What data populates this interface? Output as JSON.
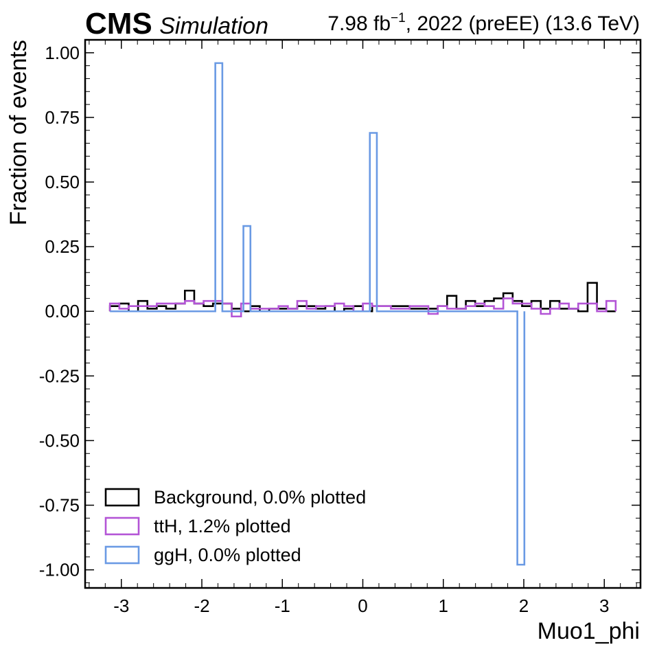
{
  "header": {
    "experiment": "CMS",
    "tag": "Simulation",
    "lumi_prefix": "7.98 fb",
    "lumi_exp": "−1",
    "lumi_suffix": ", 2022 (preEE) (13.6 TeV)"
  },
  "chart_data": {
    "type": "step-histogram",
    "xlabel": "Muo1_phi",
    "ylabel": "Fraction of events",
    "xlim": [
      -3.45,
      3.45
    ],
    "ylim": [
      -1.07,
      1.05
    ],
    "x_ticks": [
      -3,
      -2,
      -1,
      0,
      1,
      2,
      3
    ],
    "x_tick_labels": [
      "-3",
      "-2",
      "-1",
      "0",
      "1",
      "2",
      "3"
    ],
    "y_ticks": [
      -1.0,
      -0.75,
      -0.5,
      -0.25,
      0.0,
      0.25,
      0.5,
      0.75,
      1.0
    ],
    "y_tick_labels": [
      "-1.00",
      "-0.75",
      "-0.50",
      "-0.25",
      "0.00",
      "0.25",
      "0.50",
      "0.75",
      "1.00"
    ],
    "grid": false,
    "legend_position": "bottom-left",
    "bin_range": [
      -3.14159,
      3.14159
    ],
    "n_bins": 54,
    "series": [
      {
        "name": "Background, 0.0% plotted",
        "color": "#000000",
        "values": [
          0.02,
          0.03,
          0.0,
          0.04,
          0.01,
          0.02,
          0.01,
          0.03,
          0.08,
          0.03,
          0.02,
          0.03,
          0.03,
          0.01,
          0.0,
          0.02,
          0.0,
          0.01,
          0.01,
          0.01,
          0.02,
          0.02,
          0.01,
          0.02,
          0.0,
          0.01,
          0.02,
          0.0,
          0.02,
          0.02,
          0.02,
          0.02,
          0.01,
          0.01,
          0.01,
          0.02,
          0.06,
          0.01,
          0.04,
          0.02,
          0.04,
          0.05,
          0.07,
          0.04,
          0.02,
          0.04,
          0.01,
          0.04,
          0.01,
          0.01,
          0.0,
          0.11,
          0.01,
          0.0
        ]
      },
      {
        "name": "ttH, 1.2% plotted",
        "color": "#b354d6",
        "values": [
          0.03,
          0.01,
          0.02,
          0.02,
          0.02,
          0.03,
          0.03,
          0.03,
          0.04,
          0.03,
          0.04,
          0.04,
          0.03,
          -0.02,
          0.03,
          0.01,
          0.01,
          0.01,
          0.02,
          0.01,
          0.04,
          0.01,
          0.02,
          0.02,
          0.03,
          0.02,
          0.0,
          0.03,
          0.02,
          0.02,
          0.01,
          0.01,
          0.02,
          0.02,
          -0.01,
          0.02,
          0.01,
          0.01,
          0.02,
          0.03,
          0.02,
          0.01,
          0.05,
          0.03,
          0.03,
          0.01,
          -0.01,
          0.01,
          0.03,
          0.01,
          0.03,
          0.03,
          0.0,
          0.04
        ]
      },
      {
        "name": "ggH, 0.0% plotted",
        "color": "#6a9ae4",
        "segments": [
          [
            -3.14159,
            -1.8326,
            0
          ],
          [
            -1.8326,
            -1.7453,
            0.96
          ],
          [
            -1.7453,
            -1.4835,
            0
          ],
          [
            -1.4835,
            -1.3963,
            0.33
          ],
          [
            -1.3963,
            0.0873,
            0
          ],
          [
            0.0873,
            0.1745,
            0.69
          ],
          [
            0.1745,
            1.9199,
            0
          ],
          [
            1.9199,
            2.0071,
            -0.98
          ]
        ]
      }
    ]
  }
}
